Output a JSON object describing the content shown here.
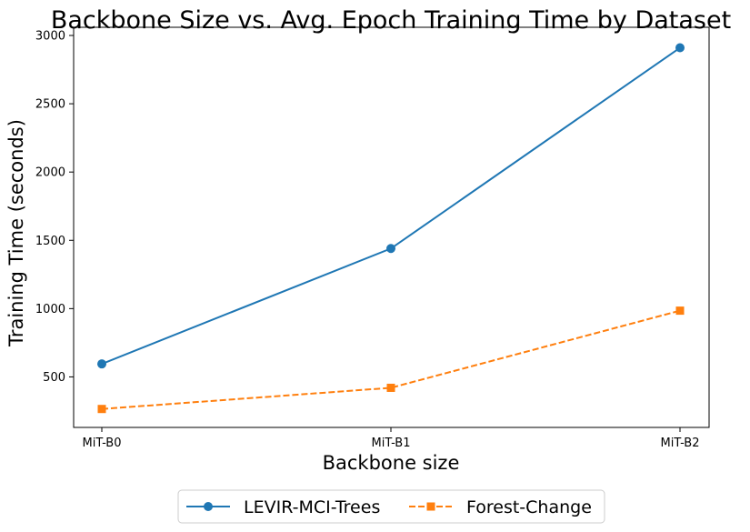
{
  "chart_data": {
    "type": "line",
    "title": "Backbone Size vs. Avg. Epoch Training Time by Dataset",
    "xlabel": "Backbone size",
    "ylabel": "Training Time (seconds)",
    "categories": [
      "MiT-B0",
      "MiT-B1",
      "MiT-B2"
    ],
    "ylim": [
      130,
      3060
    ],
    "yticks": [
      500,
      1000,
      1500,
      2000,
      2500,
      3000
    ],
    "grid": false,
    "legend_position": "bottom-center",
    "series": [
      {
        "name": "LEVIR-MCI-Trees",
        "values": [
          595,
          1440,
          2910
        ],
        "color": "#1f77b4",
        "marker": "circle",
        "linestyle": "solid"
      },
      {
        "name": "Forest-Change",
        "values": [
          265,
          420,
          985
        ],
        "color": "#ff7f0e",
        "marker": "square",
        "linestyle": "dashed"
      }
    ]
  }
}
